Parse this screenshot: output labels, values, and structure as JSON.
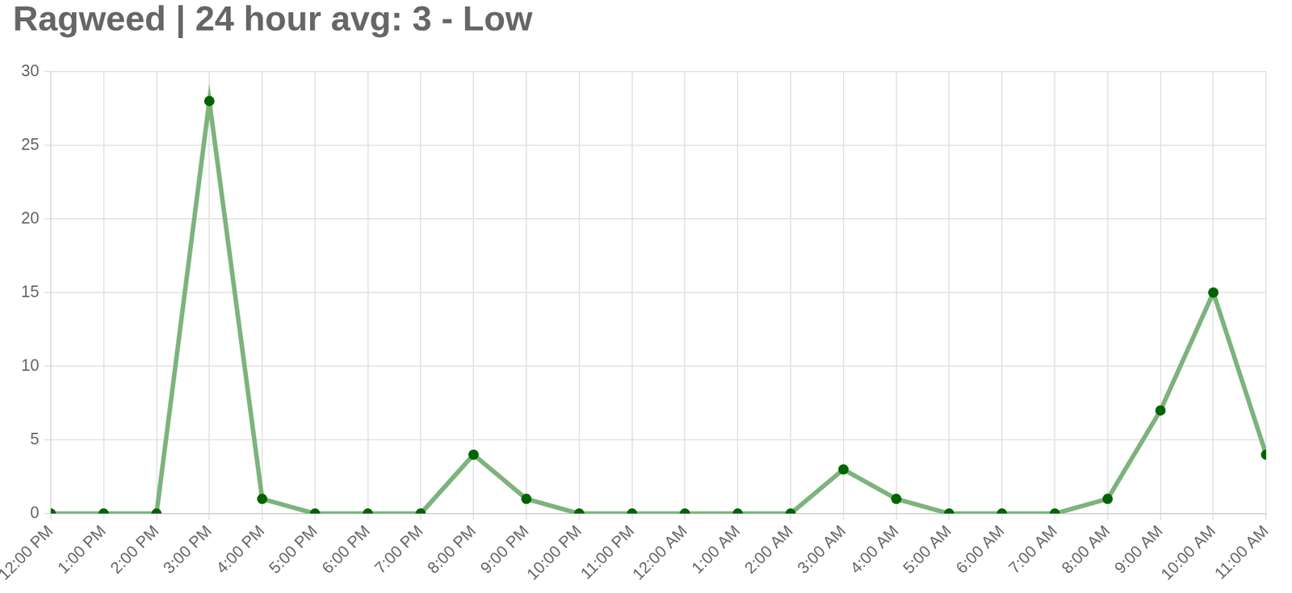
{
  "chart_data": {
    "type": "line",
    "title": "Ragweed | 24 hour avg: 3 - Low",
    "categories": [
      "12:00 PM",
      "1:00 PM",
      "2:00 PM",
      "3:00 PM",
      "4:00 PM",
      "5:00 PM",
      "6:00 PM",
      "7:00 PM",
      "8:00 PM",
      "9:00 PM",
      "10:00 PM",
      "11:00 PM",
      "12:00 AM",
      "1:00 AM",
      "2:00 AM",
      "3:00 AM",
      "4:00 AM",
      "5:00 AM",
      "6:00 AM",
      "7:00 AM",
      "8:00 AM",
      "9:00 AM",
      "10:00 AM",
      "11:00 AM"
    ],
    "values": [
      0,
      0,
      0,
      28,
      1,
      0,
      0,
      0,
      4,
      1,
      0,
      0,
      0,
      0,
      0,
      3,
      1,
      0,
      0,
      0,
      1,
      7,
      15,
      4
    ],
    "color": "#7db37d",
    "marker": "circle",
    "ylim": [
      0,
      30
    ],
    "yticks": [
      0,
      5,
      10,
      15,
      20,
      25,
      30
    ],
    "grid": true
  }
}
